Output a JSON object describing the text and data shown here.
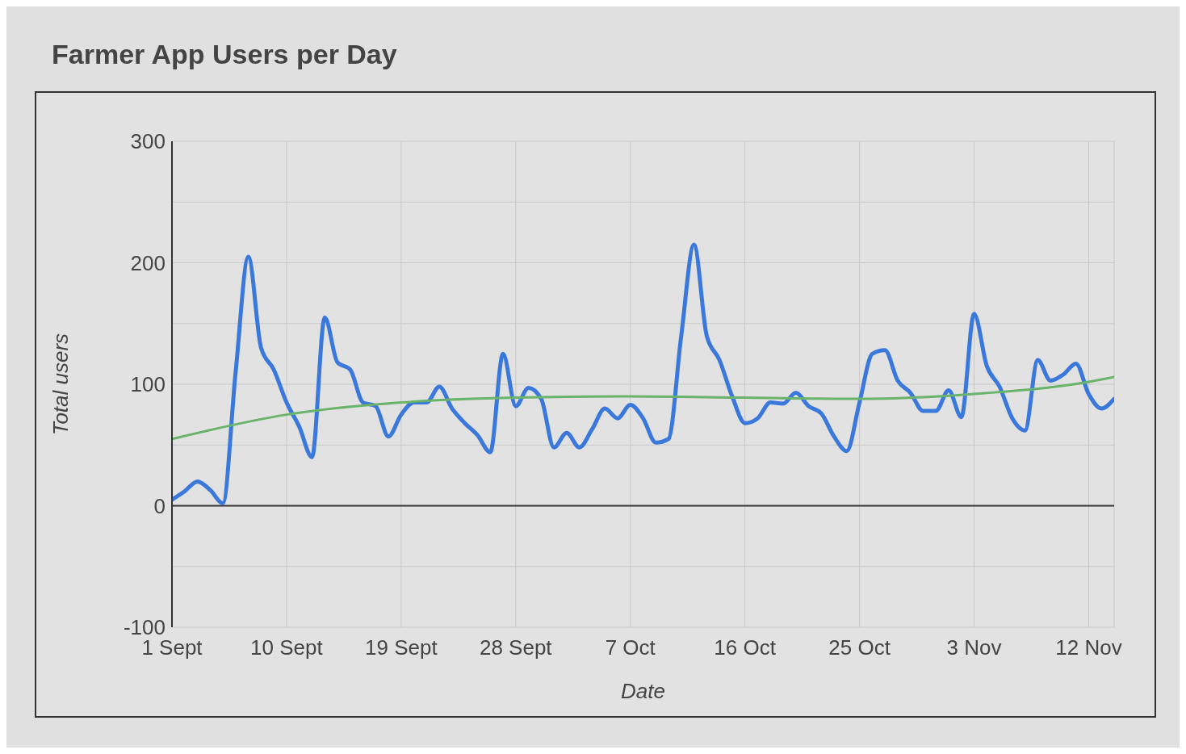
{
  "chart_data": {
    "type": "line",
    "title": "Farmer App Users per Day",
    "xlabel": "Date",
    "ylabel": "Total users",
    "x": [
      "--09-01",
      "--09-02",
      "--09-03",
      "--09-04",
      "--09-05",
      "--09-06",
      "--09-07",
      "--09-08",
      "--09-09",
      "--09-10",
      "--09-11",
      "--09-12",
      "--09-13",
      "--09-14",
      "--09-15",
      "--09-16",
      "--09-17",
      "--09-18",
      "--09-19",
      "--09-20",
      "--09-21",
      "--09-22",
      "--09-23",
      "--09-24",
      "--09-25",
      "--09-26",
      "--09-27",
      "--09-28",
      "--09-29",
      "--09-30",
      "--10-01",
      "--10-02",
      "--10-03",
      "--10-04",
      "--10-05",
      "--10-06",
      "--10-07",
      "--10-08",
      "--10-09",
      "--10-10",
      "--10-11",
      "--10-12",
      "--10-13",
      "--10-14",
      "--10-15",
      "--10-16",
      "--10-17",
      "--10-18",
      "--10-19",
      "--10-20",
      "--10-21",
      "--10-22",
      "--10-23",
      "--10-24",
      "--10-25",
      "--10-26",
      "--10-27",
      "--10-28",
      "--10-29",
      "--10-30",
      "--10-31",
      "--11-01",
      "--11-02",
      "--11-03",
      "--11-04",
      "--11-05",
      "--11-06",
      "--11-07",
      "--11-08",
      "--11-09",
      "--11-10",
      "--11-11",
      "--11-12",
      "--11-13",
      "--11-14"
    ],
    "series": [
      {
        "color": "#3b78dc",
        "values": [
          5,
          12,
          20,
          13,
          2,
          110,
          205,
          130,
          112,
          85,
          65,
          40,
          155,
          118,
          112,
          85,
          82,
          57,
          75,
          85,
          85,
          98,
          80,
          68,
          58,
          44,
          125,
          82,
          97,
          88,
          48,
          60,
          48,
          63,
          80,
          72,
          83,
          72,
          52,
          55,
          140,
          215,
          140,
          120,
          90,
          68,
          72,
          85,
          84,
          93,
          82,
          76,
          57,
          45,
          85,
          125,
          128,
          103,
          93,
          78,
          78,
          95,
          73,
          158,
          115,
          98,
          72,
          62,
          120,
          103,
          108,
          117,
          92,
          80,
          88
        ]
      },
      {
        "type": "line",
        "color": "#6ab36b",
        "x": [
          "--09-01",
          "--09-10",
          "--09-19",
          "--09-28",
          "--10-07",
          "--10-16",
          "--10-25",
          "--11-03",
          "--11-12",
          "--11-14"
        ],
        "values": [
          55,
          75,
          85,
          89,
          90,
          89,
          88,
          92,
          102,
          106
        ]
      }
    ],
    "xlim": [
      "--09-01",
      "--11-14"
    ],
    "xticks": [
      {
        "value": "--09-01",
        "label": "1 Sept"
      },
      {
        "value": "--09-10",
        "label": "10 Sept"
      },
      {
        "value": "--09-19",
        "label": "19 Sept"
      },
      {
        "value": "--09-28",
        "label": "28 Sept"
      },
      {
        "value": "--10-07",
        "label": "7 Oct"
      },
      {
        "value": "--10-16",
        "label": "16 Oct"
      },
      {
        "value": "--10-25",
        "label": "25 Oct"
      },
      {
        "value": "--11-03",
        "label": "3 Nov"
      },
      {
        "value": "--11-12",
        "label": "12 Nov"
      }
    ],
    "ylim": [
      -100,
      300
    ],
    "yticks": [
      -100,
      {
        "value": -50,
        "label": null
      },
      0,
      {
        "value": 50,
        "label": null
      },
      100,
      {
        "value": 150,
        "label": null
      },
      200,
      {
        "value": 250,
        "label": null
      },
      300
    ],
    "ref_lines": [
      {
        "axis": "y",
        "value": 0,
        "color": "#333333"
      }
    ],
    "grid": true,
    "marker": "none",
    "line_style": "solid"
  }
}
